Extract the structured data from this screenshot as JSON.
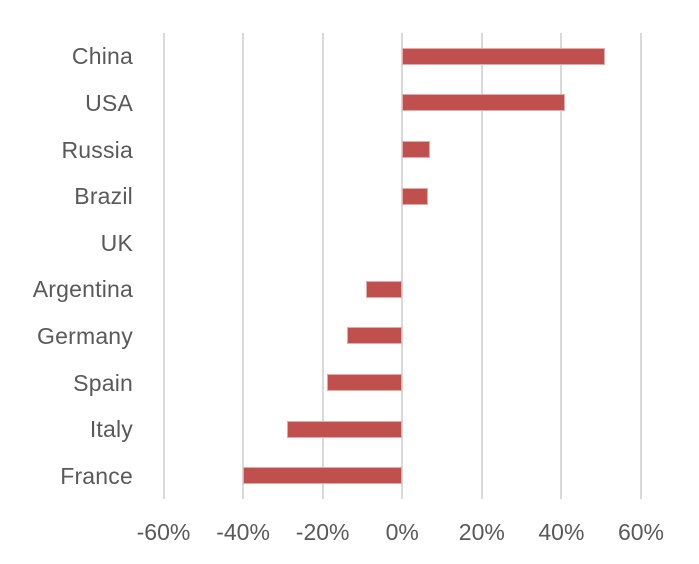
{
  "style": {
    "background_color": "#ffffff",
    "bar_color": "#c0504d",
    "bar_border_color": "#e2aba9",
    "gridline_color": "#d9d9d9",
    "text_color": "#595959"
  },
  "chart_data": {
    "type": "bar",
    "orientation": "horizontal",
    "title": "",
    "xlabel": "",
    "ylabel": "",
    "categories": [
      "China",
      "USA",
      "Russia",
      "Brazil",
      "UK",
      "Argentina",
      "Germany",
      "Spain",
      "Italy",
      "France"
    ],
    "values": [
      51,
      41,
      7,
      6.5,
      0,
      -9,
      -14,
      -19,
      -29,
      -40
    ],
    "xlim": [
      -60,
      60
    ],
    "x_tick_values": [
      -60,
      -40,
      -20,
      0,
      20,
      40,
      60
    ],
    "x_tick_labels": [
      "-60%",
      "-40%",
      "-20%",
      "0%",
      "20%",
      "40%",
      "60%"
    ],
    "grid": "vertical",
    "legend": "none",
    "value_unit": "%"
  }
}
